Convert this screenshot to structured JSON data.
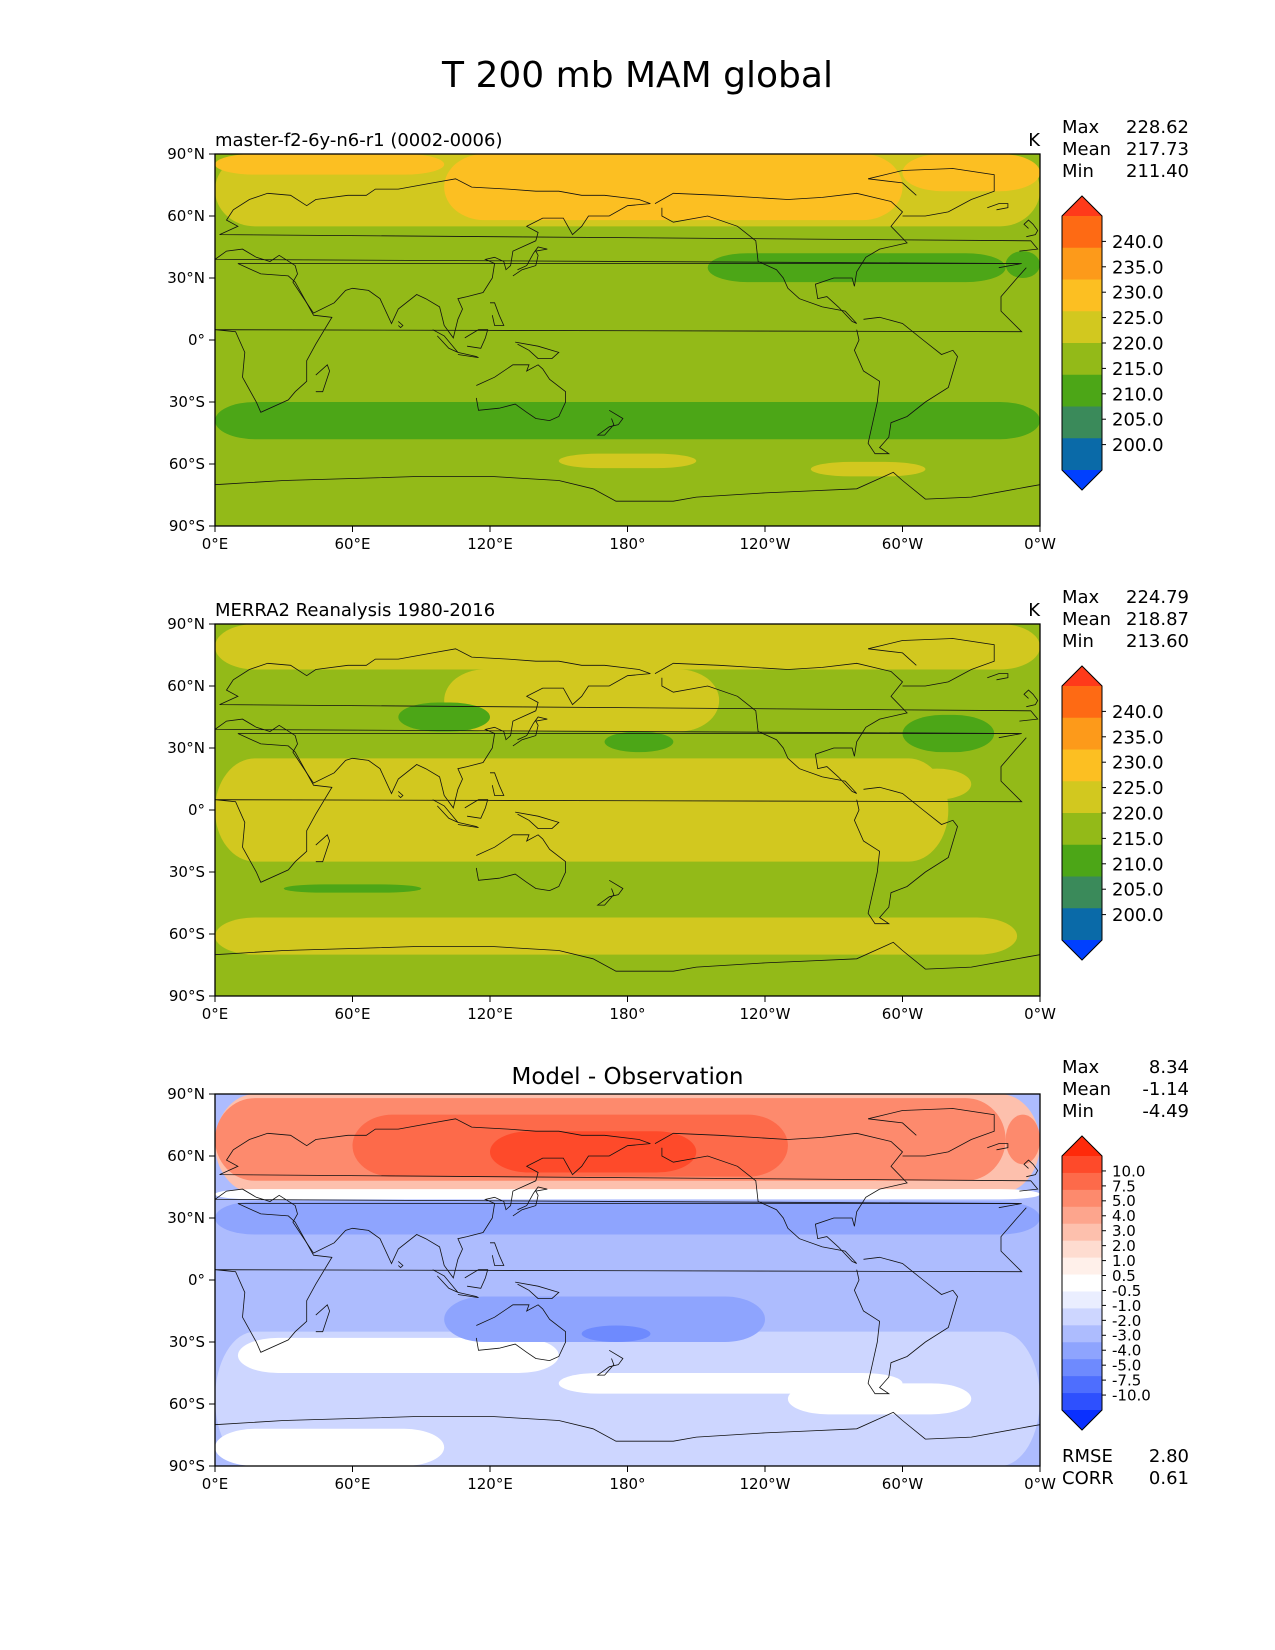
{
  "title": "T 200 mb MAM global",
  "x_ticks": [
    "0°E",
    "60°E",
    "120°E",
    "180°",
    "120°W",
    "60°W",
    "0°W"
  ],
  "y_ticks": [
    "90°N",
    "60°N",
    "30°N",
    "0°",
    "30°S",
    "60°S",
    "90°S"
  ],
  "panels": [
    {
      "id": "model",
      "left_title": "master-f2-6y-n6-r1 (0002-0006)",
      "center_title": "",
      "units": "K",
      "stats": [
        {
          "label": "Max",
          "value": "228.62"
        },
        {
          "label": "Mean",
          "value": "217.73"
        },
        {
          "label": "Min",
          "value": "211.40"
        }
      ],
      "colorbar": {
        "labels": [
          "240.0",
          "235.0",
          "230.0",
          "225.0",
          "220.0",
          "215.0",
          "210.0",
          "205.0",
          "200.0"
        ],
        "colors": [
          "#ff3a1a",
          "#fe6a14",
          "#fd9a1a",
          "#fcbf22",
          "#d2c81f",
          "#93ba18",
          "#4ca617",
          "#3a8a5a",
          "#0a6aa8",
          "#0040ff"
        ]
      },
      "field": {
        "base": "#93ba18",
        "colors": {
          "c220": "#d2c81f",
          "c225": "#fcbf22",
          "c210": "#4ca617"
        }
      }
    },
    {
      "id": "obs",
      "left_title": "MERRA2 Reanalysis 1980-2016",
      "center_title": "",
      "units": "K",
      "stats": [
        {
          "label": "Max",
          "value": "224.79"
        },
        {
          "label": "Mean",
          "value": "218.87"
        },
        {
          "label": "Min",
          "value": "213.60"
        }
      ],
      "colorbar": {
        "labels": [
          "240.0",
          "235.0",
          "230.0",
          "225.0",
          "220.0",
          "215.0",
          "210.0",
          "205.0",
          "200.0"
        ],
        "colors": [
          "#ff3a1a",
          "#fe6a14",
          "#fd9a1a",
          "#fcbf22",
          "#d2c81f",
          "#93ba18",
          "#4ca617",
          "#3a8a5a",
          "#0a6aa8",
          "#0040ff"
        ]
      },
      "field": {
        "base": "#93ba18",
        "colors": {
          "c220": "#d2c81f",
          "c210": "#4ca617"
        }
      }
    },
    {
      "id": "diff",
      "left_title": "",
      "center_title": "Model - Observation",
      "units": "",
      "stats": [
        {
          "label": "Max",
          "value": "8.34"
        },
        {
          "label": "Mean",
          "value": "-1.14"
        },
        {
          "label": "Min",
          "value": "-4.49"
        }
      ],
      "metrics": [
        {
          "label": "RMSE",
          "value": "2.80"
        },
        {
          "label": "CORR",
          "value": "0.61"
        }
      ],
      "colorbar": {
        "labels": [
          "10.0",
          "7.5",
          "5.0",
          "4.0",
          "3.0",
          "2.0",
          "1.0",
          "0.5",
          "-0.5",
          "-1.0",
          "-2.0",
          "-3.0",
          "-4.0",
          "-5.0",
          "-7.5",
          "-10.0"
        ],
        "colors": [
          "#ff2a0a",
          "#fe4a2a",
          "#fd6a4a",
          "#fd8a6d",
          "#fda58d",
          "#fdc0ad",
          "#fedcd0",
          "#fff0ea",
          "#ffffff",
          "#eaeeff",
          "#cdd6ff",
          "#adbcfe",
          "#8ea4fe",
          "#6e8afe",
          "#4e6efe",
          "#2e50fe",
          "#0a30ff"
        ]
      },
      "field": {
        "base": "#adbcfe",
        "colors": {
          "p1": "#fdc0ad",
          "p3": "#fd8a6d",
          "p5": "#fd6a4a",
          "p7": "#fe4a2a",
          "white": "#ffffff",
          "m1": "#cdd6ff",
          "m3": "#8ea4fe",
          "m4": "#6e8afe"
        }
      }
    }
  ]
}
